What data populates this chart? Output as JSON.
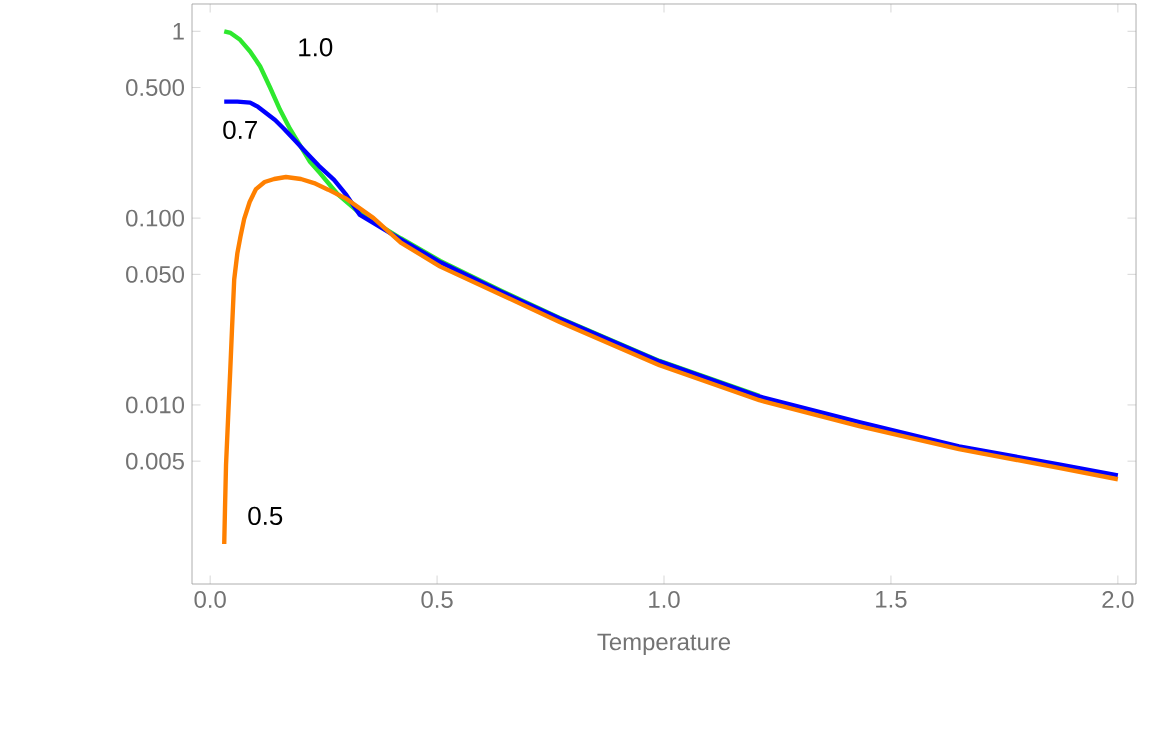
{
  "chart_data": {
    "type": "line",
    "xlabel": "Temperature",
    "log": "y",
    "xlim": [
      -0.04,
      2.04
    ],
    "ylim": [
      0.0011,
      1.4
    ],
    "xticks": [
      {
        "value": 0,
        "label": "0.0"
      },
      0.5,
      {
        "value": 1,
        "label": "1.0"
      },
      1.5,
      {
        "value": 2,
        "label": "2.0"
      }
    ],
    "yticks": [
      {
        "value": 0.005,
        "label": "0.005"
      },
      {
        "value": 0.01,
        "label": "0.010"
      },
      {
        "value": 0.05,
        "label": "0.050"
      },
      {
        "value": 0.1,
        "label": "0.100"
      },
      {
        "value": 0.5,
        "label": "0.500"
      },
      1
    ],
    "grid": false,
    "legend": false,
    "marker": "none",
    "line_style": "solid",
    "series": [
      {
        "name": "1.0",
        "color": "#2ee82e",
        "x": [
          0.031,
          0.045,
          0.066,
          0.088,
          0.11,
          0.132,
          0.154,
          0.176,
          0.198,
          0.22,
          0.242,
          0.28,
          0.33,
          0.42,
          0.507,
          0.64,
          0.77,
          0.99,
          1.21
        ],
        "values": [
          1.0,
          0.98,
          0.9,
          0.78,
          0.65,
          0.5,
          0.38,
          0.3,
          0.245,
          0.2,
          0.174,
          0.135,
          0.106,
          0.078,
          0.059,
          0.041,
          0.0292,
          0.0172,
          0.0112
        ]
      },
      {
        "name": "0.7",
        "color": "#0000ff",
        "x": [
          0.031,
          0.06,
          0.088,
          0.105,
          0.123,
          0.143,
          0.163,
          0.187,
          0.211,
          0.24,
          0.273,
          0.3,
          0.33,
          0.42,
          0.507,
          0.64,
          0.77,
          0.99,
          1.21,
          1.43,
          1.65,
          1.87,
          2.0
        ],
        "values": [
          0.42,
          0.42,
          0.415,
          0.395,
          0.365,
          0.335,
          0.3,
          0.26,
          0.225,
          0.19,
          0.16,
          0.133,
          0.104,
          0.077,
          0.058,
          0.0405,
          0.029,
          0.0171,
          0.0111,
          0.0081,
          0.006,
          0.0048,
          0.0042
        ]
      },
      {
        "name": "0.5",
        "color": "#ff8000",
        "x": [
          0.031,
          0.033,
          0.035,
          0.04,
          0.044,
          0.048,
          0.053,
          0.06,
          0.067,
          0.075,
          0.087,
          0.101,
          0.12,
          0.141,
          0.167,
          0.2,
          0.229,
          0.26,
          0.3,
          0.36,
          0.42,
          0.507,
          0.64,
          0.77,
          0.99,
          1.21,
          1.43,
          1.65,
          1.87,
          2.0
        ],
        "values": [
          0.0018,
          0.003,
          0.0048,
          0.009,
          0.0148,
          0.025,
          0.047,
          0.065,
          0.08,
          0.099,
          0.122,
          0.143,
          0.156,
          0.162,
          0.166,
          0.162,
          0.154,
          0.142,
          0.127,
          0.1,
          0.074,
          0.055,
          0.039,
          0.0278,
          0.0163,
          0.0106,
          0.0077,
          0.0058,
          0.0046,
          0.004
        ]
      }
    ]
  }
}
